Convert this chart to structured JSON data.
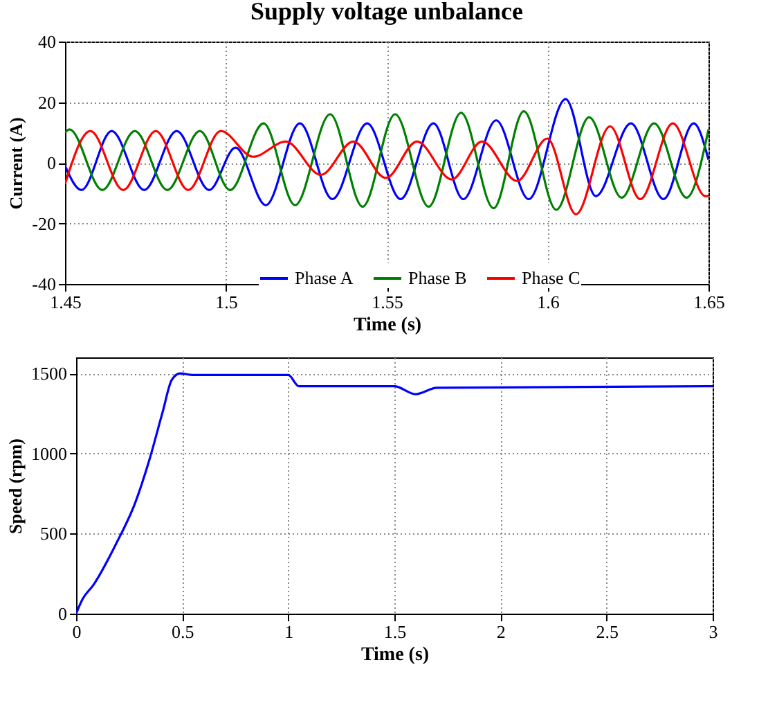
{
  "chart_data": [
    {
      "type": "line",
      "title": "Supply voltage unbalance",
      "xlabel": "Time (s)",
      "ylabel": "Current (A)",
      "xlim": [
        1.45,
        1.65
      ],
      "xticks": [
        1.45,
        1.5,
        1.55,
        1.6,
        1.65
      ],
      "ylim": [
        -40,
        40
      ],
      "yticks": [
        -40,
        -20,
        0,
        20,
        40
      ],
      "grid": true,
      "legend": "bottom",
      "series": [
        {
          "name": "Phase A",
          "color": "#0000ff",
          "x": [
            1.45,
            1.4551,
            1.4645,
            1.4746,
            1.4847,
            1.4948,
            1.503,
            1.5124,
            1.523,
            1.5331,
            1.5439,
            1.5543,
            1.5645,
            1.5738,
            1.584,
            1.5941,
            1.6056,
            1.615,
            1.6259,
            1.636,
            1.6454,
            1.65
          ],
          "values": [
            -1,
            -9,
            10.5,
            -9,
            10.5,
            -9,
            5,
            -14,
            13,
            -12,
            13,
            -12,
            13,
            -12,
            14,
            -12,
            21,
            -11,
            13,
            -12,
            13,
            1
          ]
        },
        {
          "name": "Phase B",
          "color": "#008000",
          "x": [
            1.45,
            1.4514,
            1.4616,
            1.4717,
            1.4818,
            1.4919,
            1.5013,
            1.5117,
            1.5215,
            1.5324,
            1.5425,
            1.5526,
            1.563,
            1.5731,
            1.5832,
            1.5926,
            1.6027,
            1.6129,
            1.623,
            1.6331,
            1.6432,
            1.65
          ],
          "values": [
            10,
            11,
            -9,
            10.5,
            -9,
            10.5,
            -9,
            13,
            -14,
            16,
            -14.5,
            16,
            -14.5,
            16.5,
            -15,
            17,
            -15.5,
            15,
            -11.5,
            13,
            -11.5,
            11
          ]
        },
        {
          "name": "Phase C",
          "color": "#ff0000",
          "x": [
            1.45,
            1.4579,
            1.4681,
            1.4782,
            1.4883,
            1.4984,
            1.5085,
            1.5186,
            1.5295,
            1.5396,
            1.5497,
            1.5594,
            1.5702,
            1.5796,
            1.5905,
            1.5999,
            1.6088,
            1.6194,
            1.6288,
            1.6389,
            1.649,
            1.65
          ],
          "values": [
            -7,
            10.5,
            -9,
            10.5,
            -9,
            10.5,
            2,
            7,
            -4,
            7,
            -5,
            7,
            -5.5,
            7,
            -6,
            8,
            -17,
            12,
            -12,
            13,
            -11,
            -11
          ]
        }
      ]
    },
    {
      "type": "line",
      "xlabel": "Time (s)",
      "ylabel": "Speed (rpm)",
      "xlim": [
        0,
        3
      ],
      "xticks": [
        0,
        0.5,
        1,
        1.5,
        2,
        2.5,
        3
      ],
      "ylim": [
        0,
        1600
      ],
      "yticks": [
        0,
        500,
        1000,
        1500
      ],
      "grid": true,
      "series": [
        {
          "color": "#0000ff",
          "x": [
            0,
            0.03,
            0.082,
            0.19,
            0.278,
            0.343,
            0.408,
            0.451,
            0.49,
            0.55,
            1.0,
            1.05,
            1.5,
            1.6,
            1.7,
            3
          ],
          "values": [
            0,
            90,
            180,
            440,
            690,
            950,
            1260,
            1460,
            1500,
            1490,
            1490,
            1420,
            1420,
            1370,
            1410,
            1420
          ]
        }
      ]
    }
  ]
}
